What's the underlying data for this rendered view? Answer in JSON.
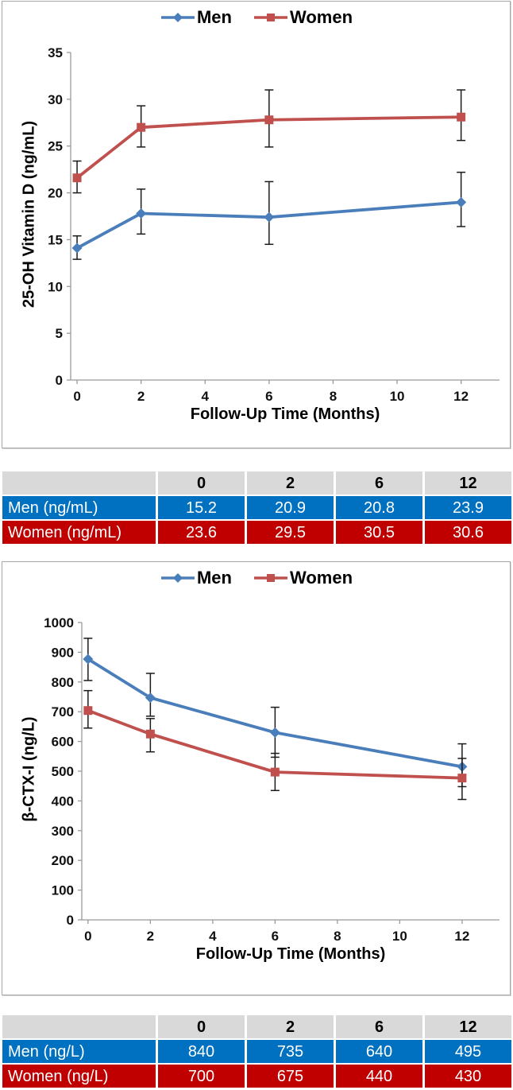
{
  "colors": {
    "men_line": "#4a7ebb",
    "women_line": "#c0504d",
    "table_men_bg": "#0070c0",
    "table_women_bg": "#c00000",
    "table_header_bg": "#d9d9d9",
    "axis": "#9a9a9a",
    "error_bar": "#1a1a1a"
  },
  "chart_data": [
    {
      "type": "line",
      "xlabel": "Follow-Up Time (Months)",
      "ylabel": "25-OH Vitamin D (ng/mL)",
      "x": [
        0,
        2,
        6,
        12
      ],
      "x_ticks": [
        0,
        2,
        4,
        6,
        8,
        10,
        12
      ],
      "x_range": [
        -0.2,
        13.2
      ],
      "ylim": [
        0,
        35
      ],
      "ytick_step": 5,
      "legend_position": "top-center",
      "grid": false,
      "error_bars": true,
      "series": [
        {
          "name": "Men",
          "marker": "diamond",
          "color": "#4a7ebb",
          "values": [
            14.1,
            17.8,
            17.4,
            19.0
          ],
          "err_low": [
            12.9,
            15.6,
            14.5,
            16.4
          ],
          "err_high": [
            15.4,
            20.4,
            21.2,
            22.2
          ]
        },
        {
          "name": "Women",
          "marker": "square",
          "color": "#c0504d",
          "values": [
            21.6,
            27.0,
            27.8,
            28.1
          ],
          "err_low": [
            20.0,
            24.9,
            24.9,
            25.6
          ],
          "err_high": [
            23.4,
            29.3,
            31.0,
            31.0
          ]
        }
      ]
    },
    {
      "type": "line",
      "xlabel": "Follow-Up Time (Months)",
      "ylabel": "β-CTX-I  (ng/L)",
      "x": [
        0,
        2,
        6,
        12
      ],
      "x_ticks": [
        0,
        2,
        4,
        6,
        8,
        10,
        12
      ],
      "x_range": [
        -0.2,
        13.2
      ],
      "ylim": [
        0,
        1000
      ],
      "ytick_step": 100,
      "legend_position": "top-center",
      "grid": false,
      "error_bars": true,
      "series": [
        {
          "name": "Men",
          "marker": "diamond",
          "color": "#4a7ebb",
          "values": [
            877,
            747,
            630,
            515
          ],
          "err_low": [
            805,
            685,
            547,
            448
          ],
          "err_high": [
            947,
            829,
            715,
            592
          ]
        },
        {
          "name": "Women",
          "marker": "square",
          "color": "#c0504d",
          "values": [
            704,
            625,
            497,
            477
          ],
          "err_low": [
            645,
            565,
            435,
            405
          ],
          "err_high": [
            771,
            677,
            560,
            543
          ]
        }
      ]
    }
  ],
  "tables": [
    {
      "columns": [
        "0",
        "2",
        "6",
        "12"
      ],
      "rows": [
        {
          "label": "Men (ng/mL)",
          "color": "#0070c0",
          "values": [
            "15.2",
            "20.9",
            "20.8",
            "23.9"
          ]
        },
        {
          "label": "Women (ng/mL)",
          "color": "#c00000",
          "values": [
            "23.6",
            "29.5",
            "30.5",
            "30.6"
          ]
        }
      ]
    },
    {
      "columns": [
        "0",
        "2",
        "6",
        "12"
      ],
      "rows": [
        {
          "label": "Men (ng/L)",
          "color": "#0070c0",
          "values": [
            "840",
            "735",
            "640",
            "495"
          ]
        },
        {
          "label": "Women (ng/L)",
          "color": "#c00000",
          "values": [
            "700",
            "675",
            "440",
            "430"
          ]
        }
      ]
    }
  ]
}
